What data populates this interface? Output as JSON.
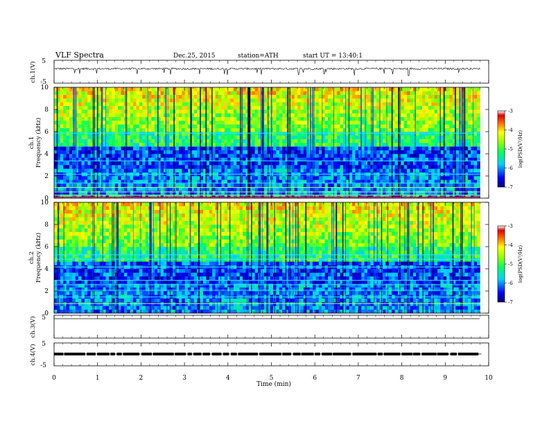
{
  "header": {
    "title": "VLF  Spectra",
    "date": "Dec.25, 2015",
    "station": "station=ATH",
    "start": "start  UT  =    13:40:1"
  },
  "chart_data": [
    {
      "type": "line",
      "panel": "ch1-waveform",
      "ylabel": "ch.1(V)",
      "ylim": [
        -5,
        5
      ],
      "yticks": [
        "5",
        "-5"
      ],
      "xlim": [
        0,
        10
      ],
      "baseline_level": 1.3,
      "x_end": 9.8
    },
    {
      "type": "heatmap",
      "panel": "ch1-spectrogram",
      "ylabel_lines": [
        "ch.1",
        "Frequency (kHz)"
      ],
      "ylim": [
        0,
        10
      ],
      "yticks": [
        "10",
        "8",
        "6",
        "4",
        "2",
        "0"
      ],
      "xlim": [
        0,
        10
      ],
      "x_end": 9.8,
      "colorbar": {
        "label": "log(PSD(V²/Hz)",
        "range": [
          -7,
          -3
        ],
        "ticks": [
          "-3",
          "-4",
          "-5",
          "-6",
          "-7"
        ]
      }
    },
    {
      "type": "heatmap",
      "panel": "ch2-spectrogram",
      "ylabel_lines": [
        "ch.2",
        "Frequency (kHz)"
      ],
      "ylim": [
        0,
        10
      ],
      "yticks": [
        "10",
        "8",
        "6",
        "4",
        "2",
        "0"
      ],
      "xlim": [
        0,
        10
      ],
      "x_end": 9.8,
      "colorbar": {
        "label": "log(PSD(V²/Hz)",
        "range": [
          -7,
          -3
        ],
        "ticks": [
          "-3",
          "-4",
          "-5",
          "-6",
          "-7"
        ]
      }
    },
    {
      "type": "line",
      "panel": "ch3-waveform",
      "ylabel": "ch.3(V)",
      "ylim": [
        -5,
        5
      ],
      "yticks": [
        "5"
      ],
      "level": 0
    },
    {
      "type": "line",
      "panel": "ch4-waveform",
      "ylabel": "ch.4(V)",
      "ylim": [
        -5,
        5
      ],
      "yticks": [
        "5",
        "-5"
      ],
      "level": 0,
      "x_end": 9.8
    }
  ],
  "xaxis": {
    "label": "Time  (min)",
    "ticks": [
      "0",
      "1",
      "2",
      "3",
      "4",
      "5",
      "6",
      "7",
      "8",
      "9",
      "10"
    ]
  }
}
